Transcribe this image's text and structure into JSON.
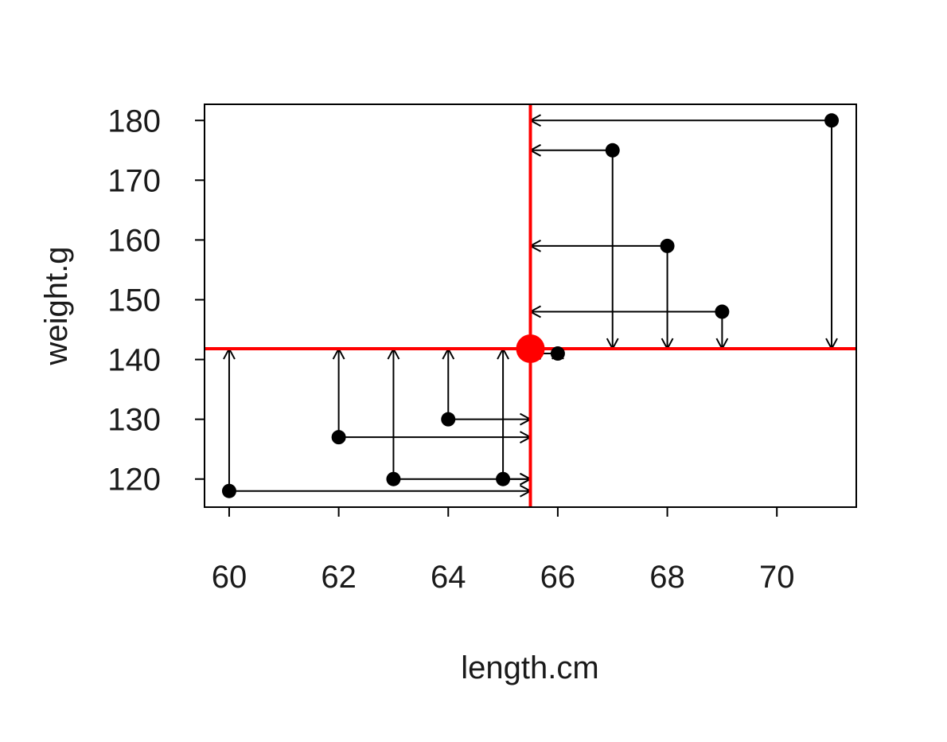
{
  "chart_data": {
    "type": "scatter",
    "title": "",
    "xlabel": "length.cm",
    "ylabel": "weight.g",
    "xlim": [
      59.55,
      71.45
    ],
    "ylim": [
      115.3,
      182.7
    ],
    "x_ticks": [
      "60",
      "62",
      "64",
      "66",
      "68",
      "70"
    ],
    "y_ticks": [
      "120",
      "130",
      "140",
      "150",
      "160",
      "170",
      "180"
    ],
    "grid": false,
    "points": [
      {
        "x": 60,
        "y": 118
      },
      {
        "x": 62,
        "y": 127
      },
      {
        "x": 63,
        "y": 120
      },
      {
        "x": 64,
        "y": 130
      },
      {
        "x": 65,
        "y": 120
      },
      {
        "x": 66,
        "y": 141
      },
      {
        "x": 67,
        "y": 175
      },
      {
        "x": 68,
        "y": 159
      },
      {
        "x": 69,
        "y": 148
      },
      {
        "x": 71,
        "y": 180
      }
    ],
    "mean_point": {
      "x": 65.5,
      "y": 141.8
    },
    "annotations": "Arrows from each point to the mean lines (red vertical at mean length, red horizontal at mean weight)",
    "colors": {
      "points": "#000000",
      "arrows": "#000000",
      "mean_lines": "#ff0000",
      "mean_point": "#ff0000",
      "frame": "#000000"
    }
  }
}
